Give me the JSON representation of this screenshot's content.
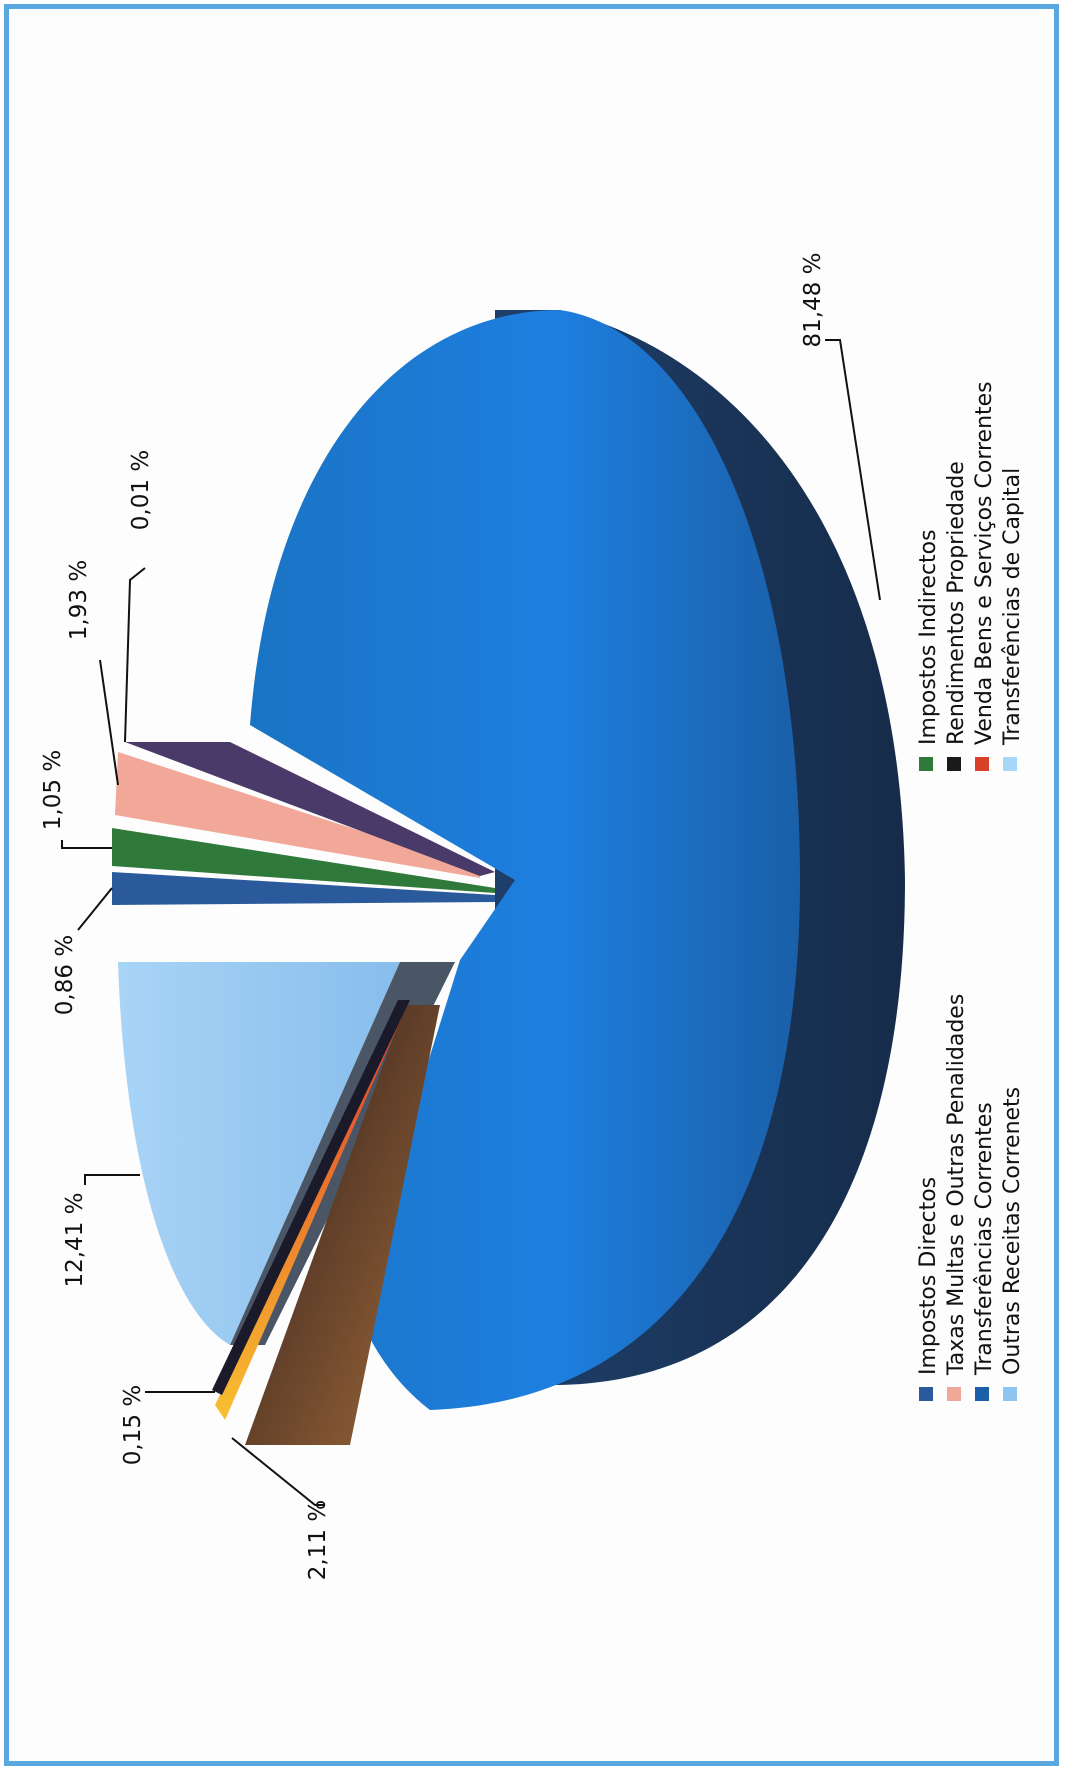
{
  "chart_data": {
    "type": "pie",
    "rotated": "90deg-counterclockwise",
    "slices": [
      {
        "name": "Impostos Directos",
        "value": 0.86,
        "label": "0,86 %",
        "color": "#2a5a9c"
      },
      {
        "name": "Impostos Indirectos",
        "value": 1.05,
        "label": "1,05 %",
        "color": "#2f7a3a"
      },
      {
        "name": "Taxas Multas e Outras Penalidades",
        "value": 1.93,
        "label": "1,93 %",
        "color": "#f2a898"
      },
      {
        "name": "Rendimentos Propriedade",
        "value": 0.01,
        "label": "0,01 %",
        "color": "#4a3a6a"
      },
      {
        "name": "Transferências Correntes",
        "value": 81.48,
        "label": "81,48 %",
        "color": "#1a6fc8"
      },
      {
        "name": "Venda Bens e Serviços Correntes",
        "value": 2.11,
        "label": "2,11 %",
        "color": "#e0702a"
      },
      {
        "name": "Outras Receitas Correnets",
        "value": 12.41,
        "label": "12,41 %",
        "color": "#9ccaf0"
      },
      {
        "name": "Transferências de Capital",
        "value": 0.15,
        "label": "0,15 %",
        "color": "#f4c030"
      }
    ],
    "legend": {
      "position": "bottom",
      "columns": [
        [
          {
            "name": "Impostos Directos",
            "color": "#2a5a9c"
          },
          {
            "name": "Taxas Multas e Outras Penalidades",
            "color": "#f2a898"
          },
          {
            "name": "Transferências Correntes",
            "color": "#1a5fa8"
          },
          {
            "name": "Outras Receitas Correnets",
            "color": "#8ec4f0"
          }
        ],
        [
          {
            "name": "Impostos Indirectos",
            "color": "#2f7a3a"
          },
          {
            "name": "Rendimentos Propriedade",
            "color": "#1a1a1a"
          },
          {
            "name": "Venda Bens e Serviços Correntes",
            "color": "#d8402a"
          },
          {
            "name": "Transferências de Capital",
            "color": "#a8d8f8"
          }
        ]
      ]
    }
  }
}
